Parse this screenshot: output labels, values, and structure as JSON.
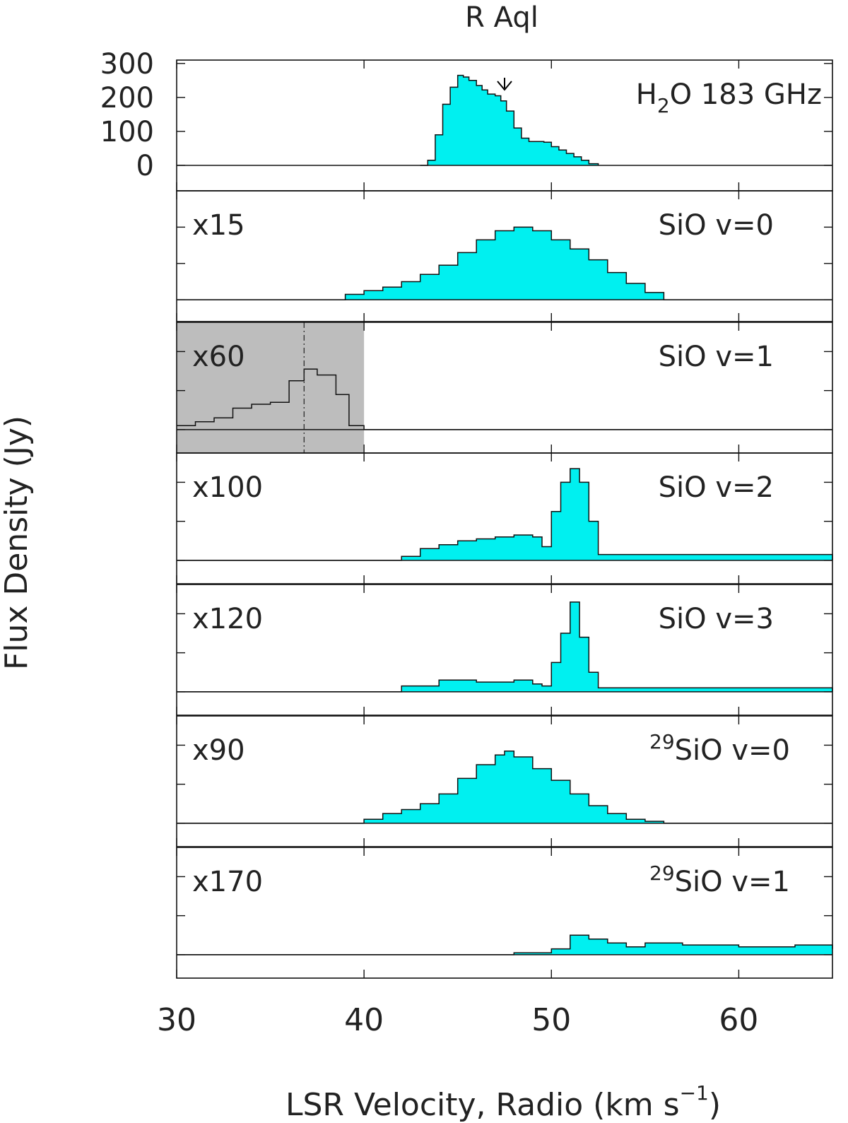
{
  "chart_data": {
    "type": "line",
    "title": "R Aql",
    "xlabel": "LSR Velocity, Radio (km s",
    "xlabel_exp": "−1",
    "ylabel": "Flux Density (Jy)",
    "xlim": [
      30,
      65
    ],
    "xticks": [
      "30",
      "40",
      "50",
      "60"
    ],
    "panels": [
      {
        "line": "H₂O 183 GHz",
        "label_main": "H",
        "label_sub": "2",
        "label_rest": "O  183  GHz",
        "scale": "",
        "ylim": [
          -75,
          310
        ],
        "yticks": [
          "300",
          "200",
          "100",
          "0"
        ],
        "marker_velocity": 47.5,
        "x": [
          43.0,
          43.4,
          43.8,
          44.2,
          44.6,
          45.0,
          45.3,
          45.6,
          46.0,
          46.3,
          46.6,
          47.0,
          47.3,
          47.6,
          48.0,
          48.4,
          48.8,
          49.2,
          49.6,
          50.0,
          50.4,
          50.8,
          51.2,
          51.6,
          52.0,
          52.5
        ],
        "values": [
          0,
          15,
          90,
          180,
          230,
          265,
          260,
          250,
          235,
          222,
          210,
          205,
          190,
          160,
          110,
          80,
          70,
          70,
          68,
          55,
          45,
          35,
          25,
          15,
          5,
          0
        ]
      },
      {
        "line": "SiO v=0",
        "label_main": "SiO  v=0",
        "scale": "x15",
        "ylim": [
          -1.2,
          6
        ],
        "yticks": [],
        "x": [
          30,
          38,
          39,
          40,
          41,
          42,
          43,
          44,
          45,
          46,
          47,
          48,
          49,
          50,
          51,
          52,
          53,
          54,
          55,
          56,
          65
        ],
        "values": [
          0,
          0,
          0.3,
          0.5,
          0.7,
          1.0,
          1.4,
          1.9,
          2.6,
          3.3,
          3.8,
          4.0,
          3.8,
          3.3,
          2.8,
          2.2,
          1.5,
          0.9,
          0.4,
          0,
          0
        ]
      },
      {
        "line": "SiO v=1",
        "label_main": "SiO  v=1",
        "scale": "x60",
        "ylim": [
          -1.2,
          5.5
        ],
        "yticks": [],
        "shaded_x": [
          30,
          40
        ],
        "dashed_velocity": 36.8,
        "filled": false,
        "x": [
          30,
          31,
          32,
          33,
          34,
          35,
          36,
          36.8,
          37.5,
          38.5,
          39.2,
          40,
          65
        ],
        "values": [
          0.2,
          0.4,
          0.6,
          1.1,
          1.3,
          1.4,
          2.5,
          3.1,
          2.8,
          1.8,
          0.2,
          0,
          0
        ]
      },
      {
        "line": "SiO v=2",
        "label_main": "SiO  v=2",
        "scale": "x100",
        "ylim": [
          -1.2,
          5.5
        ],
        "yticks": [],
        "x": [
          30,
          40,
          42,
          43,
          44,
          45,
          46,
          47,
          48,
          49,
          49.5,
          50,
          50.5,
          51,
          51.5,
          52,
          52.5,
          65
        ],
        "values": [
          0,
          0,
          0.2,
          0.6,
          0.8,
          1.0,
          1.1,
          1.2,
          1.3,
          1.2,
          0.7,
          2.5,
          4.0,
          4.7,
          4.0,
          2.0,
          0.3,
          0
        ]
      },
      {
        "line": "SiO v=3",
        "label_main": "SiO  v=3",
        "scale": "x120",
        "ylim": [
          -1.2,
          5.5
        ],
        "yticks": [],
        "x": [
          30,
          40,
          42,
          44,
          46,
          48,
          49,
          49.5,
          50,
          50.5,
          51,
          51.5,
          52,
          52.5,
          65
        ],
        "values": [
          0,
          0,
          0.3,
          0.6,
          0.5,
          0.6,
          0.4,
          0.3,
          1.5,
          3.0,
          4.6,
          2.8,
          1.0,
          0.2,
          0
        ]
      },
      {
        "line": "29SiO v=0",
        "label_sup": "29",
        "label_main": "SiO  v=0",
        "scale": "x90",
        "ylim": [
          -1.2,
          5.5
        ],
        "yticks": [],
        "x": [
          30,
          39,
          40,
          41,
          42,
          43,
          44,
          45,
          46,
          47,
          47.5,
          48,
          49,
          50,
          51,
          52,
          53,
          54,
          55,
          56,
          65
        ],
        "values": [
          0,
          0,
          0.2,
          0.5,
          0.7,
          1.0,
          1.5,
          2.3,
          3.0,
          3.5,
          3.7,
          3.4,
          2.8,
          2.2,
          1.5,
          0.9,
          0.5,
          0.2,
          0.1,
          0,
          0
        ]
      },
      {
        "line": "29SiO v=1",
        "label_sup": "29",
        "label_main": "SiO  v=1",
        "scale": "x170",
        "ylim": [
          -1.2,
          5.5
        ],
        "yticks": [],
        "x": [
          30,
          40,
          45,
          48,
          50,
          51,
          52,
          53,
          54,
          55,
          57,
          60,
          63,
          65
        ],
        "values": [
          0,
          0,
          0,
          0.1,
          0.3,
          1.0,
          0.8,
          0.6,
          0.4,
          0.6,
          0.5,
          0.4,
          0.5,
          0.3
        ]
      }
    ]
  }
}
